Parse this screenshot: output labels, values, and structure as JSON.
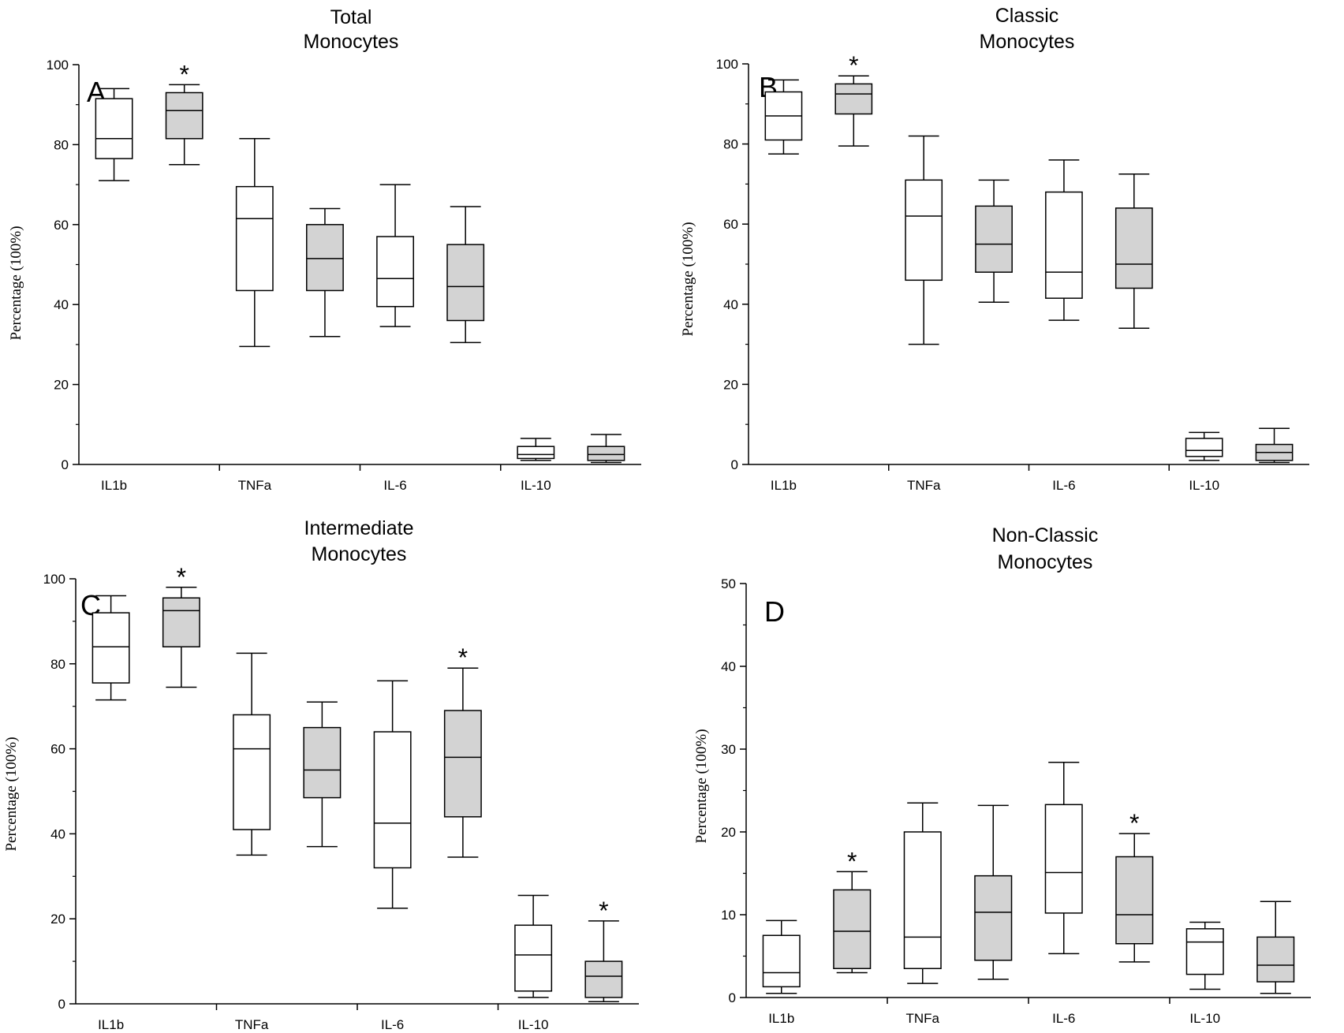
{
  "chart_data": [
    {
      "type": "box",
      "panel_letter": "A",
      "title_lines": [
        "Total",
        "Monocytes"
      ],
      "ylabel": "Percentage (100%)",
      "xlabel": "",
      "ylim": [
        0,
        100
      ],
      "yticks": [
        "0",
        "20",
        "40",
        "60",
        "80",
        "100"
      ],
      "categories": [
        "IL1b",
        "TNFa",
        "IL-6",
        "IL-10"
      ],
      "series_fills": [
        "#ffffff",
        "#d3d3d3"
      ],
      "boxes": [
        {
          "category": "IL1b",
          "series": 0,
          "whisker_low": 71,
          "q1": 76.5,
          "median": 81.5,
          "q3": 91.5,
          "whisker_high": 94,
          "star": false
        },
        {
          "category": "IL1b",
          "series": 1,
          "whisker_low": 75,
          "q1": 81.5,
          "median": 88.5,
          "q3": 93,
          "whisker_high": 95,
          "star": true
        },
        {
          "category": "TNFa",
          "series": 0,
          "whisker_low": 29.5,
          "q1": 43.5,
          "median": 61.5,
          "q3": 69.5,
          "whisker_high": 81.5,
          "star": false
        },
        {
          "category": "TNFa",
          "series": 1,
          "whisker_low": 32,
          "q1": 43.5,
          "median": 51.5,
          "q3": 60,
          "whisker_high": 64,
          "star": false
        },
        {
          "category": "IL-6",
          "series": 0,
          "whisker_low": 34.5,
          "q1": 39.5,
          "median": 46.5,
          "q3": 57,
          "whisker_high": 70,
          "star": false
        },
        {
          "category": "IL-6",
          "series": 1,
          "whisker_low": 30.5,
          "q1": 36,
          "median": 44.5,
          "q3": 55,
          "whisker_high": 64.5,
          "star": false
        },
        {
          "category": "IL-10",
          "series": 0,
          "whisker_low": 1,
          "q1": 1.5,
          "median": 2.5,
          "q3": 4.5,
          "whisker_high": 6.5,
          "star": false
        },
        {
          "category": "IL-10",
          "series": 1,
          "whisker_low": 0.5,
          "q1": 1,
          "median": 2.5,
          "q3": 4.5,
          "whisker_high": 7.5,
          "star": false
        }
      ]
    },
    {
      "type": "box",
      "panel_letter": "B",
      "title_lines": [
        "Classic",
        "Monocytes"
      ],
      "ylabel": "Percentage (100%)",
      "xlabel": "",
      "ylim": [
        0,
        100
      ],
      "yticks": [
        "0",
        "20",
        "40",
        "60",
        "80",
        "100"
      ],
      "categories": [
        "IL1b",
        "TNFa",
        "IL-6",
        "IL-10"
      ],
      "series_fills": [
        "#ffffff",
        "#d3d3d3"
      ],
      "boxes": [
        {
          "category": "IL1b",
          "series": 0,
          "whisker_low": 77.5,
          "q1": 81,
          "median": 87,
          "q3": 93,
          "whisker_high": 96,
          "star": false
        },
        {
          "category": "IL1b",
          "series": 1,
          "whisker_low": 79.5,
          "q1": 87.5,
          "median": 92.5,
          "q3": 95,
          "whisker_high": 97,
          "star": true
        },
        {
          "category": "TNFa",
          "series": 0,
          "whisker_low": 30,
          "q1": 46,
          "median": 62,
          "q3": 71,
          "whisker_high": 82,
          "star": false
        },
        {
          "category": "TNFa",
          "series": 1,
          "whisker_low": 40.5,
          "q1": 48,
          "median": 55,
          "q3": 64.5,
          "whisker_high": 71,
          "star": false
        },
        {
          "category": "IL-6",
          "series": 0,
          "whisker_low": 36,
          "q1": 41.5,
          "median": 48,
          "q3": 68,
          "whisker_high": 76,
          "star": false
        },
        {
          "category": "IL-6",
          "series": 1,
          "whisker_low": 34,
          "q1": 44,
          "median": 50,
          "q3": 64,
          "whisker_high": 72.5,
          "star": false
        },
        {
          "category": "IL-10",
          "series": 0,
          "whisker_low": 1,
          "q1": 2,
          "median": 3.5,
          "q3": 6.5,
          "whisker_high": 8,
          "star": false
        },
        {
          "category": "IL-10",
          "series": 1,
          "whisker_low": 0.5,
          "q1": 1,
          "median": 3,
          "q3": 5,
          "whisker_high": 9,
          "star": false
        }
      ]
    },
    {
      "type": "box",
      "panel_letter": "C",
      "title_lines": [
        "Intermediate",
        "Monocytes"
      ],
      "ylabel": "Percentage (100%)",
      "xlabel": "",
      "ylim": [
        0,
        100
      ],
      "yticks": [
        "0",
        "20",
        "40",
        "60",
        "80",
        "100"
      ],
      "categories": [
        "IL1b",
        "TNFa",
        "IL-6",
        "IL-10"
      ],
      "series_fills": [
        "#ffffff",
        "#d3d3d3"
      ],
      "boxes": [
        {
          "category": "IL1b",
          "series": 0,
          "whisker_low": 71.5,
          "q1": 75.5,
          "median": 84,
          "q3": 92,
          "whisker_high": 96,
          "star": false
        },
        {
          "category": "IL1b",
          "series": 1,
          "whisker_low": 74.5,
          "q1": 84,
          "median": 92.5,
          "q3": 95.5,
          "whisker_high": 98,
          "star": true
        },
        {
          "category": "TNFa",
          "series": 0,
          "whisker_low": 35,
          "q1": 41,
          "median": 60,
          "q3": 68,
          "whisker_high": 82.5,
          "star": false
        },
        {
          "category": "TNFa",
          "series": 1,
          "whisker_low": 37,
          "q1": 48.5,
          "median": 55,
          "q3": 65,
          "whisker_high": 71,
          "star": false
        },
        {
          "category": "IL-6",
          "series": 0,
          "whisker_low": 22.5,
          "q1": 32,
          "median": 42.5,
          "q3": 64,
          "whisker_high": 76,
          "star": false
        },
        {
          "category": "IL-6",
          "series": 1,
          "whisker_low": 34.5,
          "q1": 44,
          "median": 58,
          "q3": 69,
          "whisker_high": 79,
          "star": true
        },
        {
          "category": "IL-10",
          "series": 0,
          "whisker_low": 1.5,
          "q1": 3,
          "median": 11.5,
          "q3": 18.5,
          "whisker_high": 25.5,
          "star": false
        },
        {
          "category": "IL-10",
          "series": 1,
          "whisker_low": 0.5,
          "q1": 1.5,
          "median": 6.5,
          "q3": 10,
          "whisker_high": 19.5,
          "star": true
        }
      ]
    },
    {
      "type": "box",
      "panel_letter": "D",
      "title_lines": [
        "Non-Classic",
        "Monocytes"
      ],
      "ylabel": "Percentage (100%)",
      "xlabel": "",
      "ylim": [
        0,
        50
      ],
      "yticks": [
        "0",
        "10",
        "20",
        "30",
        "40",
        "50"
      ],
      "categories": [
        "IL1b",
        "TNFa",
        "IL-6",
        "IL-10"
      ],
      "series_fills": [
        "#ffffff",
        "#d3d3d3"
      ],
      "boxes": [
        {
          "category": "IL1b",
          "series": 0,
          "whisker_low": 0.5,
          "q1": 1.3,
          "median": 3,
          "q3": 7.5,
          "whisker_high": 9.3,
          "star": false
        },
        {
          "category": "IL1b",
          "series": 1,
          "whisker_low": 3,
          "q1": 3.5,
          "median": 8,
          "q3": 13,
          "whisker_high": 15.2,
          "star": true
        },
        {
          "category": "TNFa",
          "series": 0,
          "whisker_low": 1.7,
          "q1": 3.5,
          "median": 7.3,
          "q3": 20,
          "whisker_high": 23.5,
          "star": false
        },
        {
          "category": "TNFa",
          "series": 1,
          "whisker_low": 2.2,
          "q1": 4.5,
          "median": 10.3,
          "q3": 14.7,
          "whisker_high": 23.2,
          "star": false
        },
        {
          "category": "IL-6",
          "series": 0,
          "whisker_low": 5.3,
          "q1": 10.2,
          "median": 15.1,
          "q3": 23.3,
          "whisker_high": 28.4,
          "star": false
        },
        {
          "category": "IL-6",
          "series": 1,
          "whisker_low": 4.3,
          "q1": 6.5,
          "median": 10,
          "q3": 17,
          "whisker_high": 19.8,
          "star": true
        },
        {
          "category": "IL-10",
          "series": 0,
          "whisker_low": 1,
          "q1": 2.8,
          "median": 6.7,
          "q3": 8.3,
          "whisker_high": 9.1,
          "star": false
        },
        {
          "category": "IL-10",
          "series": 1,
          "whisker_low": 0.5,
          "q1": 1.9,
          "median": 3.9,
          "q3": 7.3,
          "whisker_high": 11.6,
          "star": false
        }
      ]
    }
  ],
  "annotation_symbol": "*"
}
